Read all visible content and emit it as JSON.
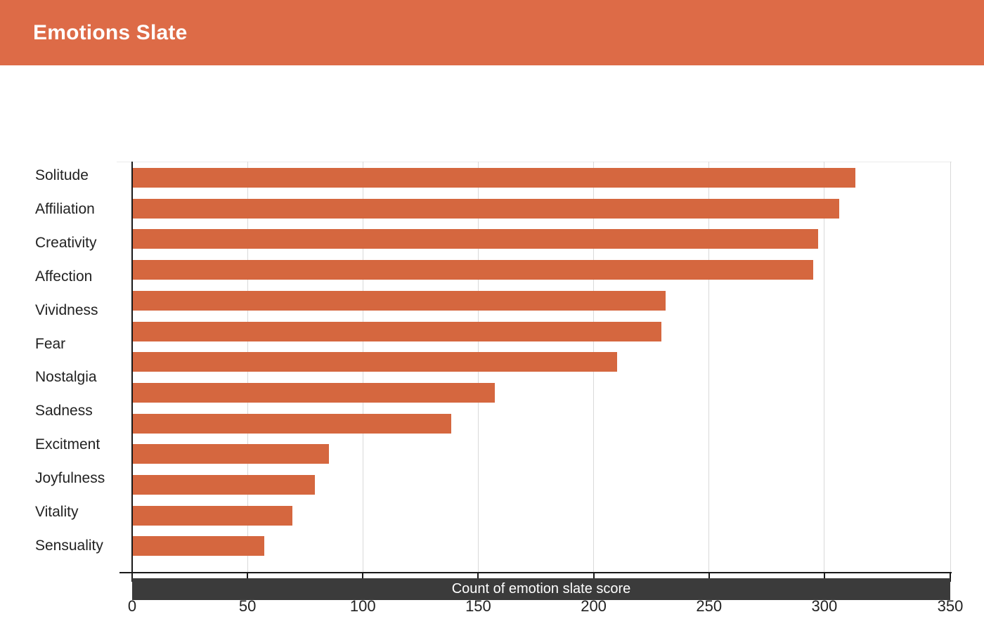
{
  "header": {
    "title": "Emotions Slate",
    "bg_color": "#DD6B47",
    "text_color": "#FFFFFF"
  },
  "chart_data": {
    "type": "bar",
    "orientation": "horizontal",
    "title": "Emotions Slate",
    "categories": [
      "Solitude",
      "Affiliation",
      "Creativity",
      "Affection",
      "Vividness",
      "Fear",
      "Nostalgia",
      "Sadness",
      "Excitment",
      "Joyfulness",
      "Vitality",
      "Sensuality"
    ],
    "values": [
      313,
      306,
      297,
      295,
      231,
      229,
      210,
      157,
      138,
      85,
      79,
      69,
      57
    ],
    "bars_count": 13,
    "visible_axis_labels_count": 12,
    "xlabel": "Count of emotion slate score",
    "ylabel": "",
    "xticks": [
      0,
      50,
      100,
      150,
      200,
      250,
      300,
      350
    ],
    "xlim": [
      0,
      350
    ],
    "grid": "vertical",
    "legend": "none",
    "bar_color": "#D5673F",
    "gridline_color": "#D9D9D9",
    "axis_color": "#1A1A1A",
    "label_color": "#222222"
  },
  "xaxis_title_bar": {
    "label": "Count of emotion slate score",
    "bg_color": "#3B3B3B",
    "text_color": "#FFFFFF"
  }
}
